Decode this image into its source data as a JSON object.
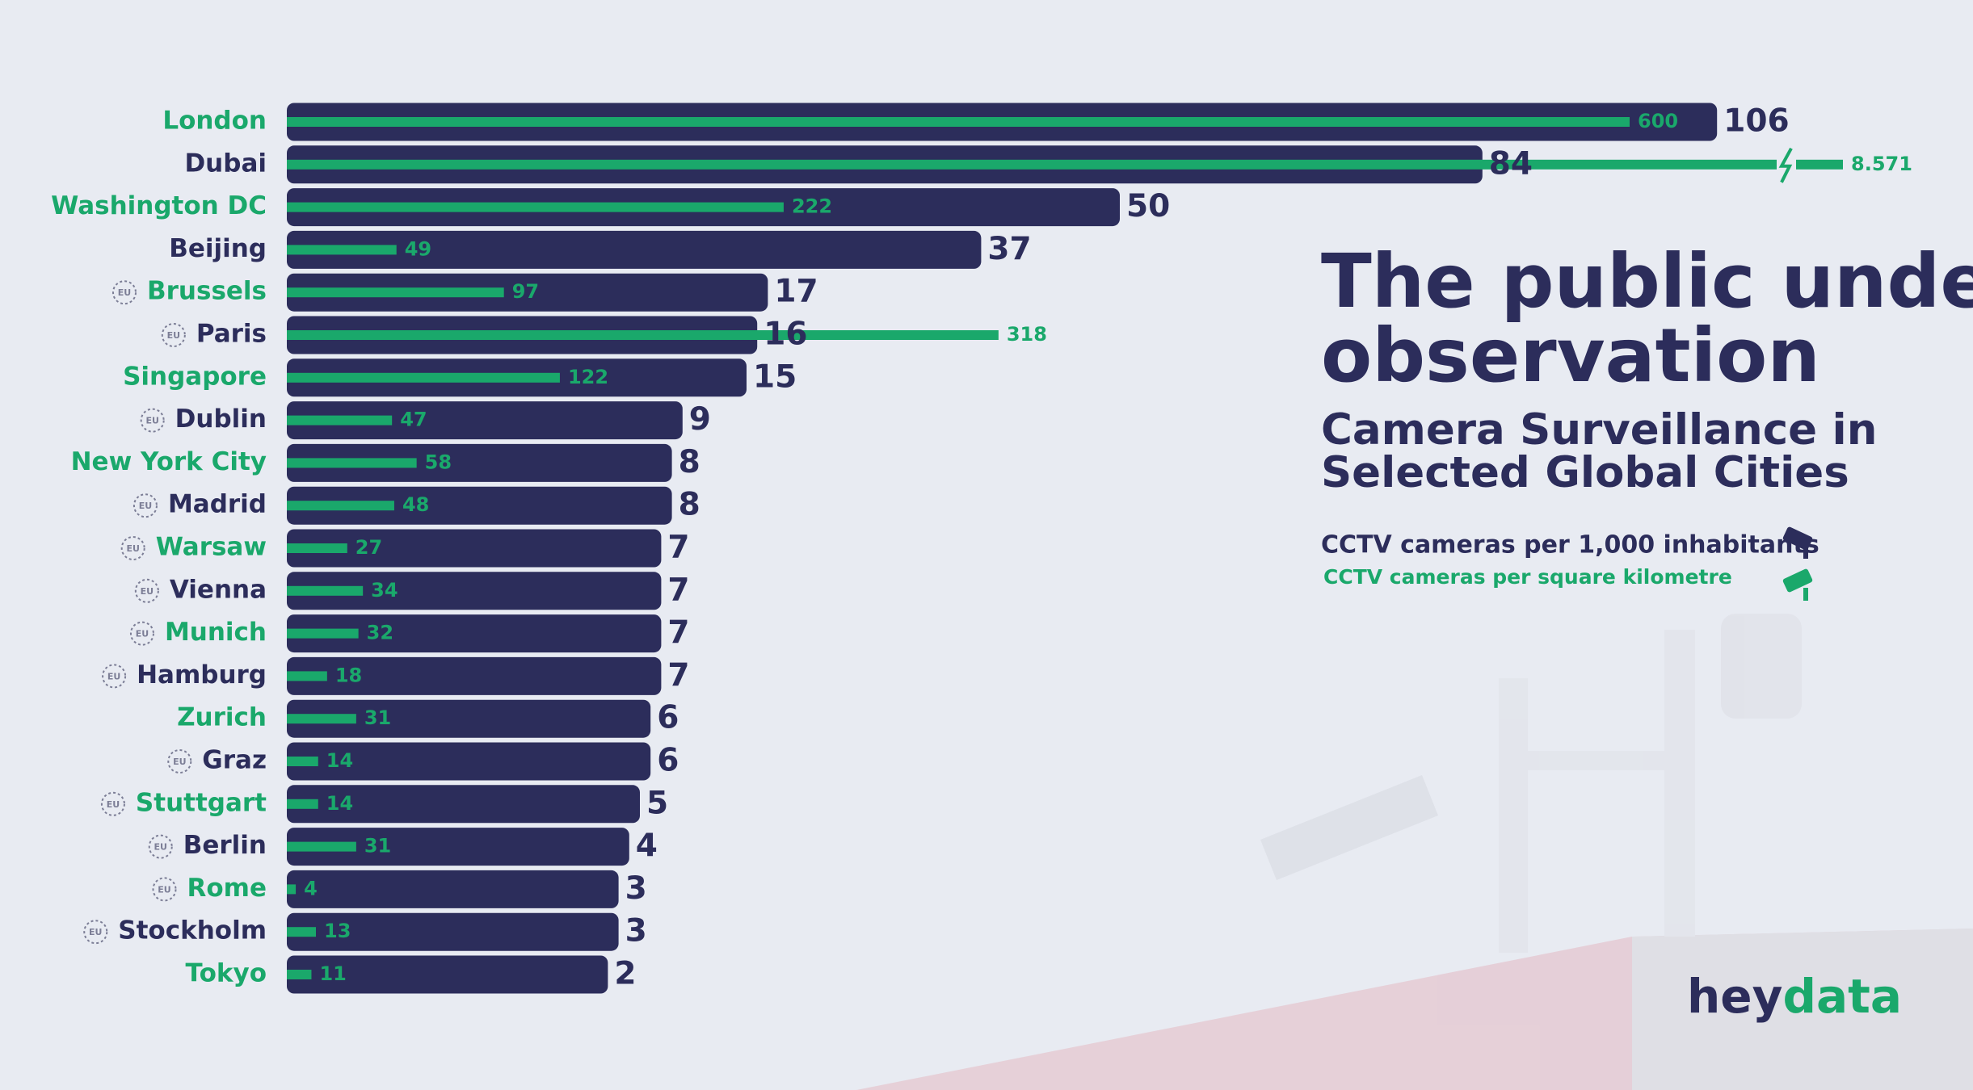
{
  "chart_data": {
    "type": "bar",
    "title": "The public under observation",
    "subtitle": "Camera Surveillance in Selected Global Cities",
    "categories": [
      "London",
      "Dubai",
      "Washington DC",
      "Beijing",
      "Brussels",
      "Paris",
      "Singapore",
      "Dublin",
      "New York City",
      "Madrid",
      "Warsaw",
      "Vienna",
      "Munich",
      "Hamburg",
      "Zurich",
      "Graz",
      "Stuttgart",
      "Berlin",
      "Rome",
      "Stockholm",
      "Tokyo"
    ],
    "label_colors": [
      "#1aa86b",
      "#2c2d5b",
      "#1aa86b",
      "#2c2d5b",
      "#1aa86b",
      "#2c2d5b",
      "#1aa86b",
      "#2c2d5b",
      "#1aa86b",
      "#2c2d5b",
      "#1aa86b",
      "#2c2d5b",
      "#1aa86b",
      "#2c2d5b",
      "#1aa86b",
      "#2c2d5b",
      "#1aa86b",
      "#2c2d5b",
      "#1aa86b",
      "#2c2d5b",
      "#1aa86b"
    ],
    "eu_badge": "EU",
    "eu": [
      false,
      false,
      false,
      false,
      true,
      true,
      false,
      true,
      false,
      true,
      true,
      true,
      true,
      true,
      false,
      true,
      true,
      true,
      true,
      true,
      false
    ],
    "series": [
      {
        "name": "CCTV cameras per 1,000 inhabitants",
        "color": "#2c2d5b",
        "values": [
          106,
          84,
          50,
          37,
          17,
          16,
          15,
          9,
          8,
          8,
          7,
          7,
          7,
          7,
          6,
          6,
          5,
          4,
          3,
          3,
          2
        ]
      },
      {
        "name": "CCTV cameras per square kilometre",
        "color": "#1aa86b",
        "values": [
          600,
          8571,
          222,
          49,
          97,
          318,
          122,
          47,
          58,
          48,
          27,
          34,
          32,
          18,
          31,
          14,
          14,
          31,
          4,
          13,
          11
        ],
        "value_labels": [
          "600",
          "8.571",
          "222",
          "49",
          "97",
          "318",
          "122",
          "47",
          "58",
          "48",
          "27",
          "34",
          "32",
          "18",
          "31",
          "14",
          "14",
          "31",
          "4",
          "13",
          "11"
        ]
      }
    ],
    "brand": [
      "hey",
      "data"
    ]
  }
}
